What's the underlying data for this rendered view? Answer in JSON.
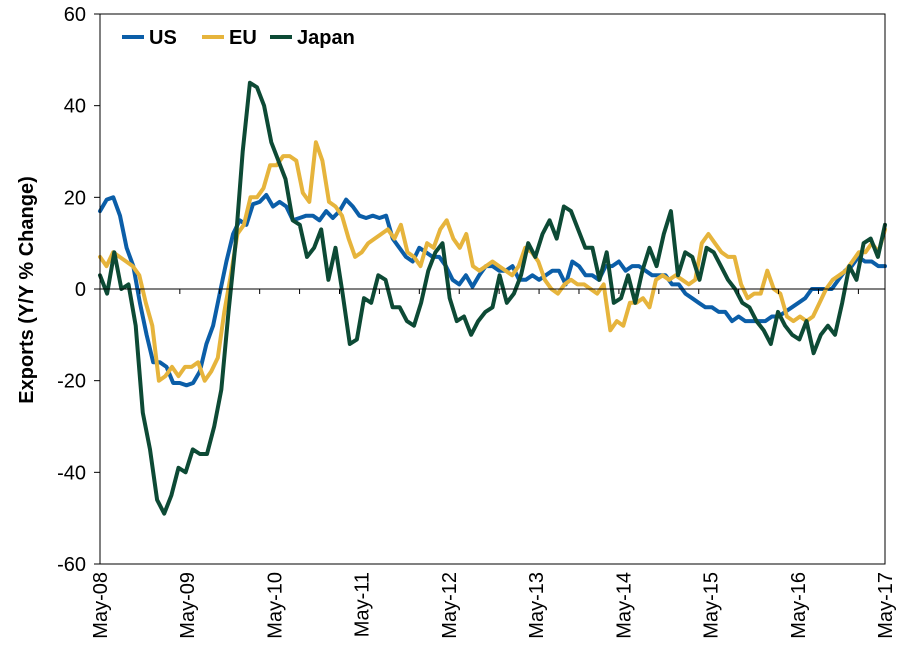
{
  "chart_data": {
    "type": "line",
    "title": "",
    "xlabel": "",
    "ylabel": "Exports (Y/Y % Change)",
    "ylim": [
      -60,
      60
    ],
    "yticks": [
      60,
      40,
      20,
      0,
      -20,
      -40,
      -60
    ],
    "x_start": "May-08",
    "x_end": "May-17",
    "x_tick_labels": [
      "May-08",
      "May-09",
      "May-10",
      "May-11",
      "May-12",
      "May-13",
      "May-14",
      "May-15",
      "May-16",
      "May-17"
    ],
    "grid": false,
    "legend_position": "top-left",
    "series": [
      {
        "name": "US",
        "color": "#0b5ea8",
        "values": [
          17,
          19.5,
          20,
          16,
          9,
          5,
          -3,
          -10,
          -16,
          -16,
          -17,
          -20.5,
          -20.5,
          -21,
          -20.5,
          -18,
          -12,
          -8,
          -1,
          6,
          12,
          15,
          14,
          18.5,
          19,
          20.5,
          18,
          19,
          18,
          15,
          15.5,
          16,
          16,
          15,
          17,
          15.5,
          17,
          19.5,
          18,
          16,
          15.5,
          16,
          15.5,
          16,
          11,
          9,
          7,
          6,
          9,
          8,
          7,
          7,
          5,
          2,
          1,
          3,
          0.5,
          3,
          5,
          5,
          4,
          4,
          5,
          2,
          2,
          3,
          2,
          3,
          4,
          4,
          1,
          6,
          5,
          3,
          3,
          2,
          5,
          5,
          6,
          4,
          5,
          5,
          4,
          3,
          3,
          3,
          1,
          1,
          -1,
          -2,
          -3,
          -4,
          -4,
          -5,
          -5,
          -7,
          -6,
          -7,
          -7,
          -7,
          -7,
          -6,
          -6,
          -5,
          -4,
          -3,
          -2,
          0,
          0,
          0,
          0,
          2,
          4,
          5,
          7,
          6,
          6,
          5,
          5
        ]
      },
      {
        "name": "EU",
        "color": "#e6b43c",
        "values": [
          7,
          5,
          8,
          7,
          6,
          5,
          3,
          -3,
          -8,
          -20,
          -19,
          -17,
          -19,
          -17,
          -17,
          -16,
          -20,
          -18,
          -15,
          -5,
          3,
          12,
          14,
          20,
          20,
          22,
          27,
          27,
          29,
          29,
          28,
          21,
          19,
          32,
          28,
          19,
          18,
          16,
          11,
          7,
          8,
          10,
          11,
          12,
          13,
          11,
          14,
          8,
          7,
          5,
          10,
          9,
          13,
          15,
          11,
          9,
          12,
          5,
          4,
          5,
          6,
          5,
          4,
          3,
          5,
          9,
          8,
          6,
          2,
          0,
          -1,
          1,
          2,
          1,
          1,
          0,
          -1,
          1,
          -9,
          -7,
          -8,
          -3,
          -3,
          -2,
          -4,
          2,
          3,
          2,
          3,
          2,
          1,
          2,
          10,
          12,
          10,
          8,
          7,
          7,
          1,
          -2,
          -1,
          -1,
          4,
          0,
          -1,
          -6,
          -7,
          -6,
          -7,
          -6,
          -3,
          0,
          2,
          3,
          4,
          6,
          8,
          8,
          10,
          8,
          13
        ]
      },
      {
        "name": "Japan",
        "color": "#0d4a35",
        "values": [
          3,
          -1,
          8,
          0,
          1,
          -8,
          -27,
          -35,
          -46,
          -49,
          -45,
          -39,
          -40,
          -35,
          -36,
          -36,
          -30,
          -22,
          -5,
          10,
          30,
          45,
          44,
          40,
          32,
          28,
          24,
          15,
          14,
          7,
          9,
          13,
          2,
          9,
          -1,
          -12,
          -11,
          -2,
          -3,
          3,
          2,
          -4,
          -4,
          -7,
          -8,
          -3,
          4,
          8,
          10,
          -2,
          -7,
          -6,
          -10,
          -7,
          -5,
          -4,
          3,
          -3,
          -1,
          3,
          10,
          7,
          12,
          15,
          11,
          18,
          17,
          13,
          9,
          9,
          2,
          8,
          -3,
          -2,
          3,
          -3,
          4,
          9,
          5,
          12,
          17,
          3,
          8,
          7,
          2,
          9,
          8,
          5,
          2,
          0,
          -3,
          -4,
          -7,
          -9,
          -12,
          -5,
          -8,
          -10,
          -11,
          -7,
          -14,
          -10,
          -8,
          -10,
          -3,
          5,
          2,
          10,
          11,
          7,
          14
        ]
      }
    ]
  }
}
